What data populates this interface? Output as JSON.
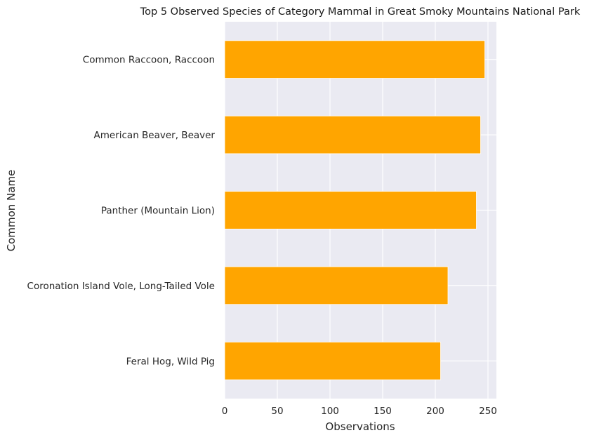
{
  "chart_data": {
    "type": "bar",
    "orientation": "horizontal",
    "title": "Top 5 Observed Species of Category Mammal in Great Smoky Mountains National Park",
    "xlabel": "Observations",
    "ylabel": "Common Name",
    "categories": [
      "Common Raccoon, Raccoon",
      "American Beaver, Beaver",
      "Panther (Mountain Lion)",
      "Coronation Island Vole, Long-Tailed Vole",
      "Feral Hog, Wild Pig"
    ],
    "values": [
      247,
      243,
      239,
      212,
      205
    ],
    "xlim": [
      0,
      258
    ],
    "xticks": [
      0,
      50,
      100,
      150,
      200,
      250
    ],
    "grid": true,
    "colors": {
      "bar": "#FFA500",
      "background": "#EAEAF2",
      "grid": "#FFFFFF"
    }
  }
}
